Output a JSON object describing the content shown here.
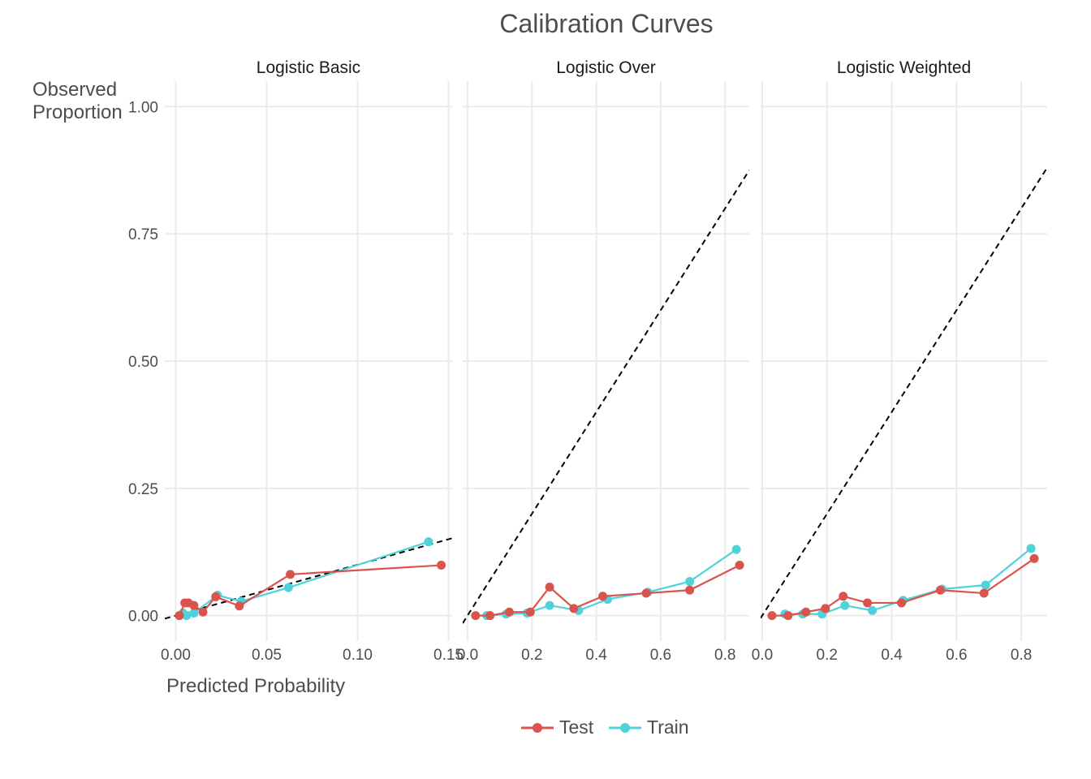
{
  "chart_data": {
    "type": "line",
    "title": "Calibration Curves",
    "xlabel": "Predicted Probability",
    "ylabel": "Observed\nProportion",
    "grid": true,
    "legend_position": "bottom",
    "colors": {
      "Test": "#d9544d",
      "Train": "#4fd2d9",
      "reference": "#000000"
    },
    "yticks": [
      "0.00",
      "0.25",
      "0.50",
      "0.75",
      "1.00"
    ],
    "ylim": [
      -0.05,
      1.05
    ],
    "legend": [
      {
        "name": "Test"
      },
      {
        "name": "Train"
      }
    ],
    "facets": [
      {
        "name": "Logistic Basic",
        "xlim": [
          -0.006,
          0.152
        ],
        "xticks": [
          "0.00",
          "0.05",
          "0.10",
          "0.15"
        ],
        "xtick_values": [
          0.0,
          0.05,
          0.1,
          0.15
        ],
        "series": [
          {
            "name": "Test",
            "x": [
              0.002,
              0.005,
              0.007,
              0.01,
              0.015,
              0.022,
              0.035,
              0.063,
              0.146
            ],
            "y": [
              0.0,
              0.025,
              0.025,
              0.02,
              0.007,
              0.037,
              0.019,
              0.081,
              0.099
            ]
          },
          {
            "name": "Train",
            "x": [
              0.002,
              0.004,
              0.006,
              0.01,
              0.023,
              0.036,
              0.062,
              0.139
            ],
            "y": [
              0.0,
              0.005,
              0.0,
              0.005,
              0.04,
              0.028,
              0.055,
              0.145
            ]
          }
        ]
      },
      {
        "name": "Logistic Over",
        "xlim": [
          -0.015,
          0.875
        ],
        "xticks": [
          "0.0",
          "0.2",
          "0.4",
          "0.6",
          "0.8"
        ],
        "xtick_values": [
          0.0,
          0.2,
          0.4,
          0.6,
          0.8
        ],
        "series": [
          {
            "name": "Test",
            "x": [
              0.025,
              0.07,
              0.13,
              0.195,
              0.255,
              0.33,
              0.42,
              0.555,
              0.69,
              0.845
            ],
            "y": [
              0.0,
              0.0,
              0.007,
              0.007,
              0.056,
              0.014,
              0.038,
              0.044,
              0.05,
              0.099
            ]
          },
          {
            "name": "Train",
            "x": [
              0.06,
              0.12,
              0.185,
              0.255,
              0.345,
              0.435,
              0.56,
              0.69,
              0.835
            ],
            "y": [
              0.0,
              0.003,
              0.005,
              0.02,
              0.01,
              0.032,
              0.046,
              0.067,
              0.13
            ]
          }
        ]
      },
      {
        "name": "Logistic Weighted",
        "xlim": [
          -0.005,
          0.88
        ],
        "xticks": [
          "0.0",
          "0.2",
          "0.4",
          "0.6",
          "0.8"
        ],
        "xtick_values": [
          0.0,
          0.2,
          0.4,
          0.6,
          0.8
        ],
        "series": [
          {
            "name": "Test",
            "x": [
              0.03,
              0.08,
              0.135,
              0.195,
              0.25,
              0.325,
              0.43,
              0.55,
              0.685,
              0.84
            ],
            "y": [
              0.0,
              0.0,
              0.007,
              0.014,
              0.038,
              0.025,
              0.025,
              0.05,
              0.044,
              0.112
            ]
          },
          {
            "name": "Train",
            "x": [
              0.07,
              0.125,
              0.185,
              0.255,
              0.34,
              0.435,
              0.555,
              0.69,
              0.83
            ],
            "y": [
              0.003,
              0.003,
              0.003,
              0.02,
              0.01,
              0.03,
              0.052,
              0.06,
              0.132
            ]
          }
        ]
      }
    ]
  }
}
